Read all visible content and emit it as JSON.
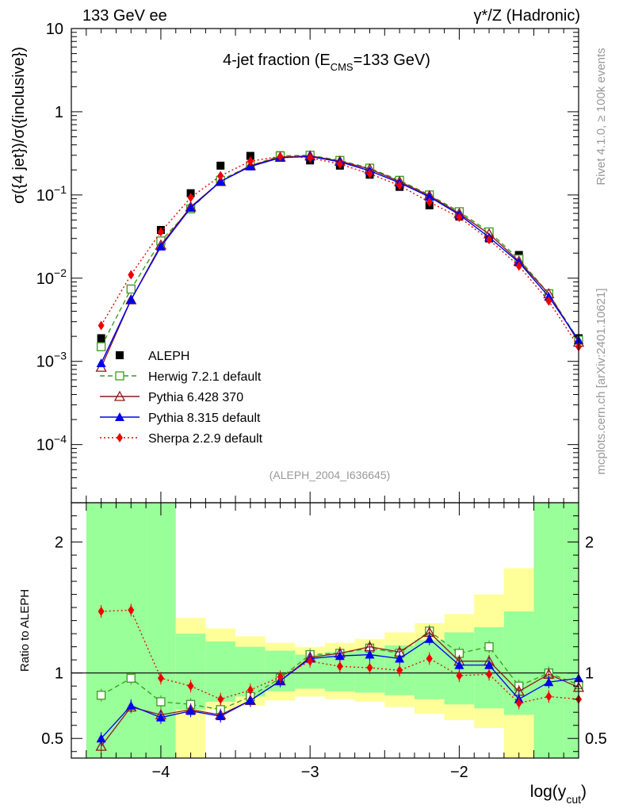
{
  "header": {
    "left": "133 GeV ee",
    "right": "γ*/Z (Hadronic)"
  },
  "side": {
    "rivet": "Rivet 4.1.0, ≥ 100k events",
    "mcplots": "mcplots.cern.ch [arXiv:2401.10621]"
  },
  "colors": {
    "data": "#000000",
    "herwig": "#3a9a1c",
    "pythia6": "#8b1a1a",
    "pythia8": "#0000ee",
    "sherpa": "#ee0000",
    "band_inner": "#99ff99",
    "band_outer": "#ffff99"
  },
  "chart_data": [
    {
      "type": "line",
      "title": "4-jet fraction (E",
      "title_sub": "CMS",
      "title_rest": "=133 GeV)",
      "ylabel": "σ({4 jet})/σ({inclusive})",
      "yscale": "log",
      "ylim": [
        2e-05,
        10
      ],
      "xlim": [
        -4.6,
        -1.2
      ],
      "y_ticks": [
        {
          "v": 10,
          "base": "10",
          "exp": ""
        },
        {
          "v": 1,
          "base": "1",
          "exp": ""
        },
        {
          "v": 0.1,
          "base": "10",
          "exp": "−1"
        },
        {
          "v": 0.01,
          "base": "10",
          "exp": "−2"
        },
        {
          "v": 0.001,
          "base": "10",
          "exp": "−3"
        },
        {
          "v": 0.0001,
          "base": "10",
          "exp": "−4"
        }
      ],
      "annotation": "(ALEPH_2004_I636645)",
      "legend": [
        {
          "key": "data",
          "label": "ALEPH",
          "marker": "square-filled",
          "style": "none"
        },
        {
          "key": "herwig",
          "label": "Herwig 7.2.1 default",
          "marker": "square-open",
          "style": "dashed"
        },
        {
          "key": "pythia6",
          "label": "Pythia 6.428 370",
          "marker": "triangle-open",
          "style": "solid"
        },
        {
          "key": "pythia8",
          "label": "Pythia 8.315 default",
          "marker": "triangle-filled",
          "style": "solid"
        },
        {
          "key": "sherpa",
          "label": "Sherpa 2.2.9 default",
          "marker": "diamond-filled",
          "style": "dotted"
        }
      ],
      "x": [
        -4.4,
        -4.2,
        -4.0,
        -3.8,
        -3.6,
        -3.4,
        -3.2,
        -3.0,
        -2.8,
        -2.6,
        -2.4,
        -2.2,
        -2.0,
        -1.8,
        -1.6,
        -1.4,
        -1.2
      ],
      "series": [
        {
          "name": "ALEPH",
          "key": "data",
          "values": [
            0.0019,
            0.0075,
            0.038,
            0.105,
            0.225,
            0.295,
            0.3,
            0.26,
            0.225,
            0.175,
            0.125,
            0.075,
            0.055,
            0.03,
            0.019,
            0.0065,
            0.0019
          ]
        },
        {
          "name": "Herwig 7.2.1 default",
          "key": "herwig",
          "values": [
            0.0015,
            0.0074,
            0.028,
            0.068,
            0.15,
            0.225,
            0.295,
            0.3,
            0.26,
            0.21,
            0.15,
            0.1,
            0.063,
            0.036,
            0.017,
            0.0065,
            0.0018
          ]
        },
        {
          "name": "Pythia 6.428 370",
          "key": "pythia6",
          "values": [
            0.00085,
            0.0055,
            0.025,
            0.072,
            0.145,
            0.225,
            0.285,
            0.295,
            0.255,
            0.205,
            0.145,
            0.098,
            0.06,
            0.034,
            0.016,
            0.0065,
            0.0017
          ]
        },
        {
          "name": "Pythia 8.315 default",
          "key": "pythia8",
          "values": [
            0.00095,
            0.0055,
            0.024,
            0.07,
            0.145,
            0.22,
            0.28,
            0.29,
            0.25,
            0.195,
            0.14,
            0.095,
            0.058,
            0.031,
            0.0155,
            0.006,
            0.0018
          ]
        },
        {
          "name": "Sherpa 2.2.9 default",
          "key": "sherpa",
          "values": [
            0.0027,
            0.011,
            0.036,
            0.093,
            0.17,
            0.255,
            0.29,
            0.28,
            0.235,
            0.18,
            0.13,
            0.082,
            0.054,
            0.029,
            0.014,
            0.0053,
            0.0015
          ]
        }
      ]
    },
    {
      "type": "line",
      "ylabel": "Ratio to ALEPH",
      "xlabel": "log(y",
      "xlabel_sub": "cut",
      "xlabel_rest": ")",
      "ylim": [
        0.35,
        2.3
      ],
      "xlim": [
        -4.6,
        -1.2
      ],
      "y_ticks": [
        "0.5",
        "1",
        "2"
      ],
      "x_ticks": [
        "−4",
        "−3",
        "−2"
      ],
      "x_tick_values": [
        -4,
        -3,
        -2
      ],
      "reference": 1,
      "x": [
        -4.4,
        -4.2,
        -4.0,
        -3.8,
        -3.6,
        -3.4,
        -3.2,
        -3.0,
        -2.8,
        -2.6,
        -2.4,
        -2.2,
        -2.0,
        -1.8,
        -1.6,
        -1.4,
        -1.2
      ],
      "bands": {
        "edges": [
          -4.5,
          -4.3,
          -4.1,
          -3.9,
          -3.7,
          -3.5,
          -3.3,
          -3.1,
          -2.9,
          -2.7,
          -2.5,
          -2.3,
          -2.1,
          -1.9,
          -1.7,
          -1.5,
          -1.3,
          -1.1
        ],
        "inner_low": [
          0.35,
          0.35,
          0.35,
          0.72,
          0.78,
          0.82,
          0.86,
          0.88,
          0.86,
          0.85,
          0.83,
          0.8,
          0.76,
          0.73,
          0.68,
          0.35,
          0.35
        ],
        "inner_high": [
          2.3,
          2.3,
          2.3,
          1.3,
          1.24,
          1.2,
          1.17,
          1.14,
          1.16,
          1.18,
          1.21,
          1.25,
          1.31,
          1.35,
          1.47,
          2.3,
          2.3
        ],
        "outer_low": [
          0.35,
          0.35,
          0.35,
          0.35,
          0.72,
          0.75,
          0.79,
          0.82,
          0.8,
          0.78,
          0.74,
          0.69,
          0.64,
          0.58,
          0.35,
          0.35,
          0.35
        ],
        "outer_high": [
          2.3,
          2.3,
          2.3,
          1.42,
          1.34,
          1.28,
          1.23,
          1.2,
          1.23,
          1.26,
          1.31,
          1.38,
          1.45,
          1.6,
          1.8,
          2.3,
          2.3
        ]
      },
      "series": [
        {
          "name": "Herwig 7.2.1 default",
          "key": "herwig",
          "values": [
            0.83,
            0.96,
            0.78,
            0.76,
            0.72,
            0.82,
            0.96,
            1.14,
            1.15,
            1.19,
            1.15,
            1.32,
            1.15,
            1.2,
            0.9,
            1.0,
            0.91
          ]
        },
        {
          "name": "Pythia 6.428 370",
          "key": "pythia6",
          "values": [
            0.44,
            0.74,
            0.68,
            0.72,
            0.68,
            0.79,
            0.94,
            1.12,
            1.15,
            1.2,
            1.16,
            1.31,
            1.09,
            1.09,
            0.86,
            0.99,
            0.89
          ]
        },
        {
          "name": "Pythia 8.315 default",
          "key": "pythia8",
          "values": [
            0.5,
            0.75,
            0.66,
            0.71,
            0.67,
            0.79,
            0.94,
            1.11,
            1.13,
            1.14,
            1.11,
            1.26,
            1.06,
            1.06,
            0.8,
            0.93,
            0.96
          ]
        },
        {
          "name": "Sherpa 2.2.9 default",
          "key": "sherpa",
          "values": [
            1.47,
            1.48,
            0.96,
            0.9,
            0.8,
            0.87,
            0.97,
            1.09,
            1.05,
            1.04,
            1.02,
            1.11,
            0.98,
            0.99,
            0.77,
            0.82,
            0.8
          ]
        }
      ]
    }
  ]
}
